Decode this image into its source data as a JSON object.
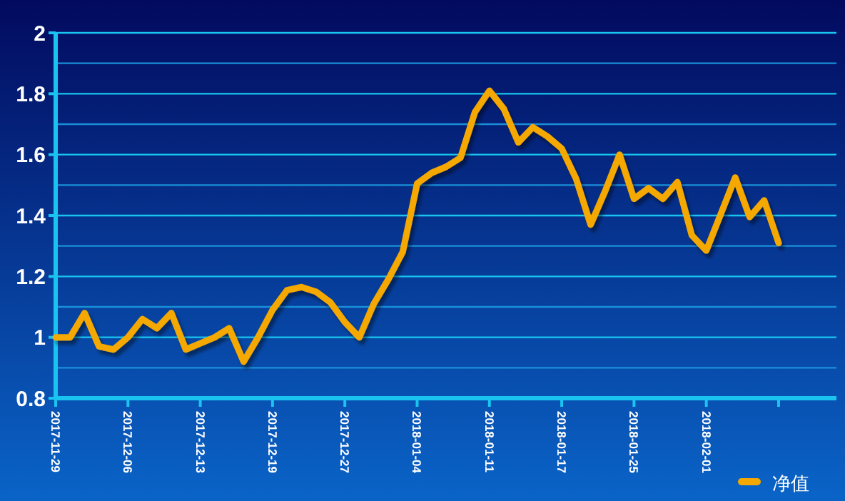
{
  "chart_data": {
    "type": "line",
    "categories": [
      "2017-11-29",
      null,
      null,
      null,
      null,
      "2017-12-06",
      null,
      null,
      null,
      null,
      "2017-12-13",
      null,
      null,
      null,
      null,
      "2017-12-19",
      null,
      null,
      null,
      null,
      "2017-12-27",
      null,
      null,
      null,
      null,
      "2018-01-04",
      null,
      null,
      null,
      null,
      "2018-01-11",
      null,
      null,
      null,
      null,
      "2018-01-17",
      null,
      null,
      null,
      null,
      "2018-01-25",
      null,
      null,
      null,
      null,
      "2018-02-01",
      null,
      null,
      null,
      null,
      null,
      null,
      null,
      null,
      null
    ],
    "series": [
      {
        "name": "净值",
        "color": "#f5a800",
        "values": [
          1.0,
          1.0,
          1.08,
          0.97,
          0.96,
          1.0,
          1.06,
          1.03,
          1.08,
          0.96,
          0.98,
          1.0,
          1.03,
          0.92,
          1.0,
          1.09,
          1.155,
          1.165,
          1.15,
          1.115,
          1.05,
          1.0,
          1.11,
          1.19,
          1.28,
          1.505,
          1.54,
          1.56,
          1.59,
          1.74,
          1.81,
          1.75,
          1.64,
          1.69,
          1.66,
          1.62,
          1.52,
          1.37,
          1.48,
          1.6,
          1.455,
          1.49,
          1.455,
          1.51,
          1.335,
          1.285,
          1.405,
          1.525,
          1.395,
          1.45,
          1.31,
          null,
          null,
          null,
          null
        ]
      }
    ],
    "ylim": [
      0.8,
      2
    ],
    "yticks": [
      0.8,
      {
        "value": 0.9,
        "label": null
      },
      1,
      {
        "value": 1.1,
        "label": null
      },
      1.2,
      {
        "value": 1.3,
        "label": null
      },
      1.4,
      {
        "value": 1.5,
        "label": null
      },
      1.6,
      {
        "value": 1.7,
        "label": null
      },
      1.8,
      {
        "value": 1.9,
        "label": null
      },
      2
    ],
    "grid": "y",
    "legend": "bottom right",
    "marker": "none",
    "line_style": "solid"
  }
}
